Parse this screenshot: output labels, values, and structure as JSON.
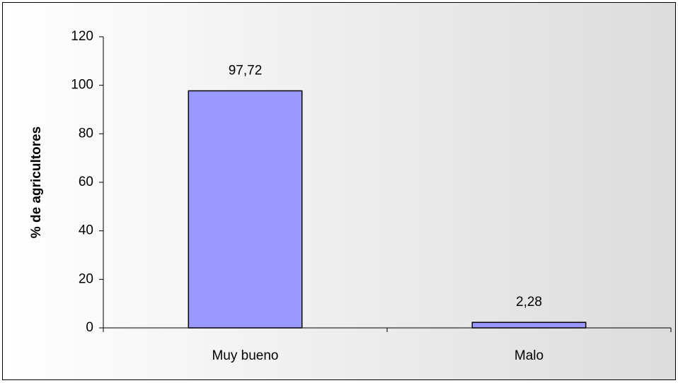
{
  "chart_data": {
    "type": "bar",
    "y_label": "% de agricultores",
    "categories": [
      "Muy bueno",
      "Malo"
    ],
    "values": [
      97.72,
      2.28
    ],
    "value_labels": [
      "97,72",
      "2,28"
    ],
    "color": "#9999ff",
    "ylim": [
      0,
      120
    ],
    "yticks": [
      0,
      20,
      40,
      60,
      80,
      100,
      120
    ],
    "grid": false
  }
}
